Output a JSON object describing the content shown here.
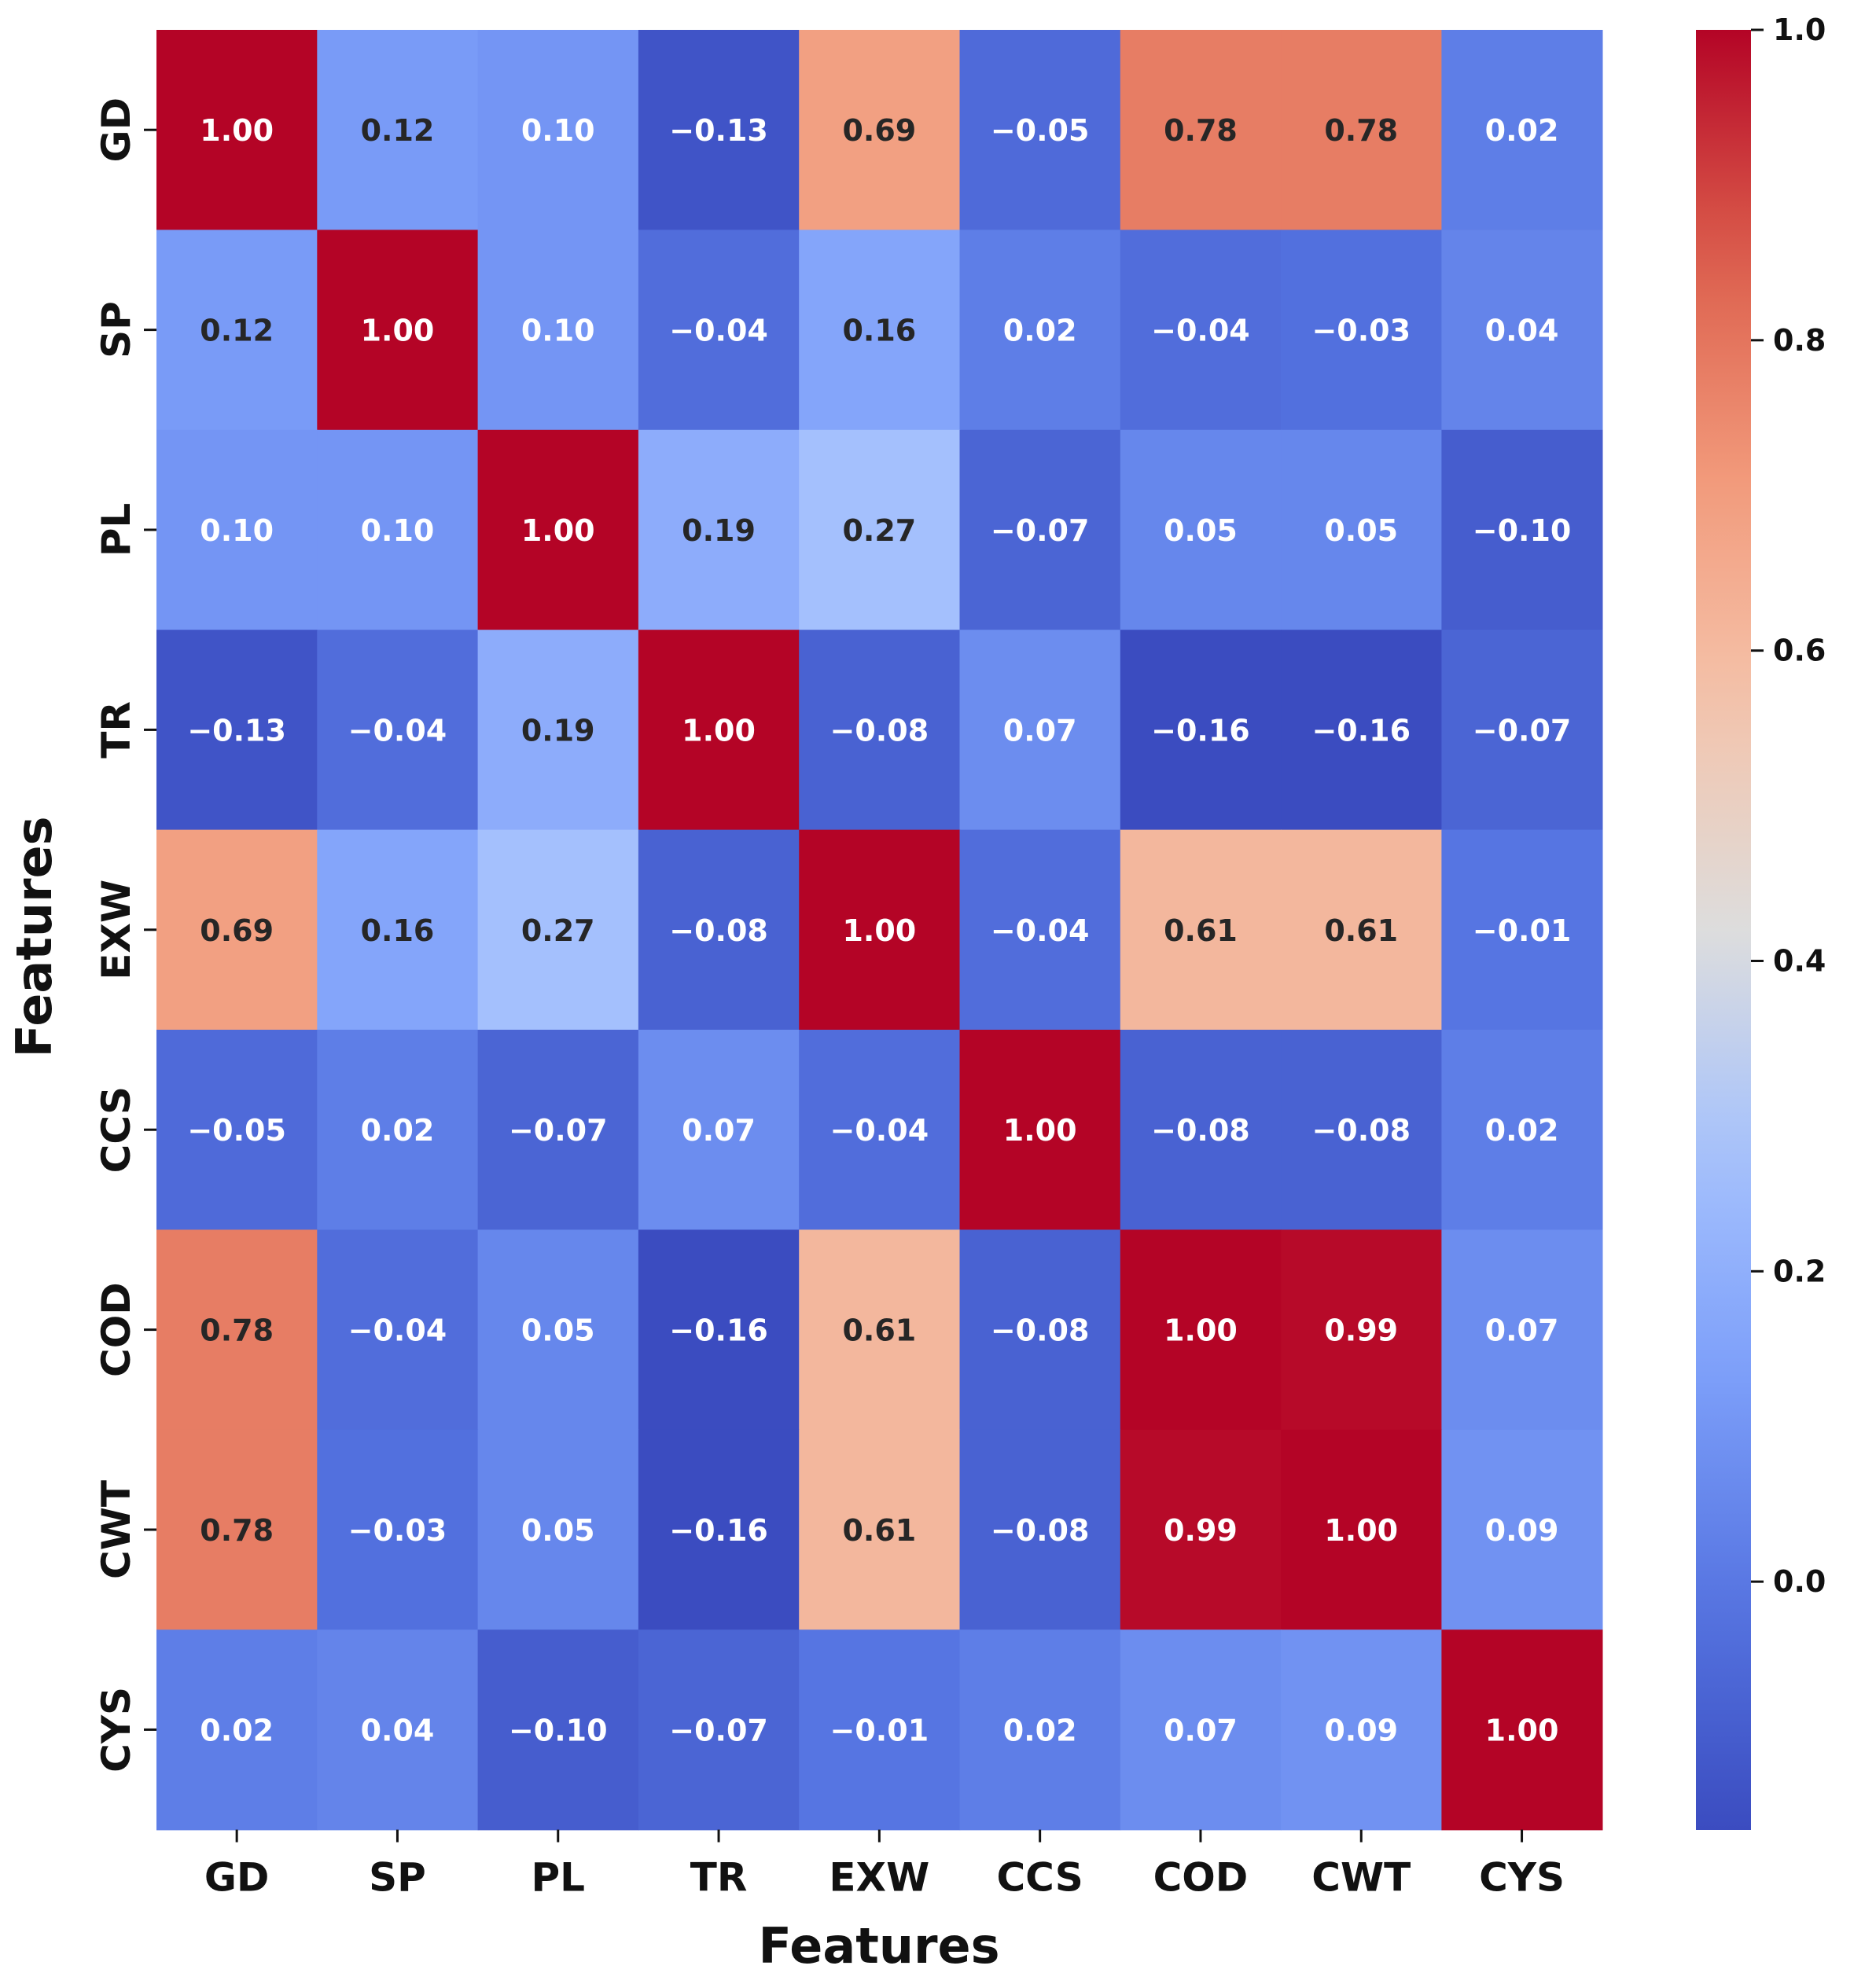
{
  "chart_data": {
    "type": "heatmap",
    "title": "",
    "xlabel": "Features",
    "ylabel": "Features",
    "x_categories": [
      "GD",
      "SP",
      "PL",
      "TR",
      "EXW",
      "CCS",
      "COD",
      "CWT",
      "CYS"
    ],
    "y_categories": [
      "GD",
      "SP",
      "PL",
      "TR",
      "EXW",
      "CCS",
      "COD",
      "CWT",
      "CYS"
    ],
    "values": [
      [
        1.0,
        0.12,
        0.1,
        -0.13,
        0.69,
        -0.05,
        0.78,
        0.78,
        0.02
      ],
      [
        0.12,
        1.0,
        0.1,
        -0.04,
        0.16,
        0.02,
        -0.04,
        -0.03,
        0.04
      ],
      [
        0.1,
        0.1,
        1.0,
        0.19,
        0.27,
        -0.07,
        0.05,
        0.05,
        -0.1
      ],
      [
        -0.13,
        -0.04,
        0.19,
        1.0,
        -0.08,
        0.07,
        -0.16,
        -0.16,
        -0.07
      ],
      [
        0.69,
        0.16,
        0.27,
        -0.08,
        1.0,
        -0.04,
        0.61,
        0.61,
        -0.01
      ],
      [
        -0.05,
        0.02,
        -0.07,
        0.07,
        -0.04,
        1.0,
        -0.08,
        -0.08,
        0.02
      ],
      [
        0.78,
        -0.04,
        0.05,
        -0.16,
        0.61,
        -0.08,
        1.0,
        0.99,
        0.07
      ],
      [
        0.78,
        -0.03,
        0.05,
        -0.16,
        0.61,
        -0.08,
        0.99,
        1.0,
        0.09
      ],
      [
        0.02,
        0.04,
        -0.1,
        -0.07,
        -0.01,
        0.02,
        0.07,
        0.09,
        1.0
      ]
    ],
    "annotation_format": "2 decimals",
    "colormap": "coolwarm",
    "vmin": -0.16,
    "vmax": 1.0,
    "colorbar": {
      "ticks": [
        0.0,
        0.2,
        0.4,
        0.6,
        0.8,
        1.0
      ],
      "tick_labels": [
        "0.0",
        "0.2",
        "0.4",
        "0.6",
        "0.8",
        "1.0"
      ]
    }
  }
}
